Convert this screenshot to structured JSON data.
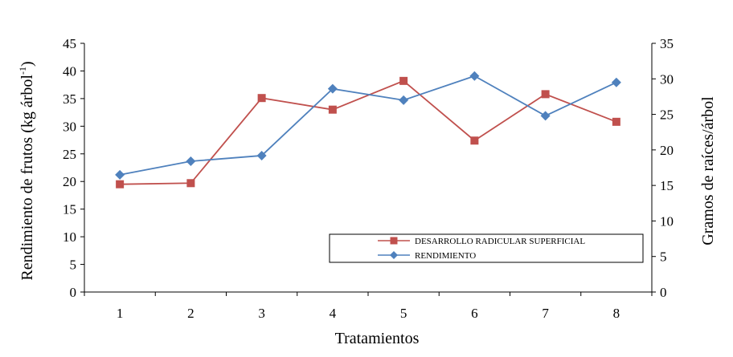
{
  "chart_data": {
    "type": "line",
    "title": "",
    "xlabel": "Tratamientos",
    "ylabel_left": "Rendimiento de  frutos (kg árbol",
    "ylabel_left_sup": "-1",
    "ylabel_left_close": ")",
    "ylabel_right": "Gramos de raíces/árbol",
    "categories": [
      "1",
      "2",
      "3",
      "4",
      "5",
      "6",
      "7",
      "8"
    ],
    "ylim_left": [
      0,
      45
    ],
    "yticks_left": [
      0,
      5,
      10,
      15,
      20,
      25,
      30,
      35,
      40,
      45
    ],
    "ylim_right": [
      0,
      35
    ],
    "yticks_right": [
      0,
      5,
      10,
      15,
      20,
      25,
      30,
      35
    ],
    "grid": false,
    "legend_position": "bottom-right",
    "series": [
      {
        "name": "DESARROLLO RADICULAR SUPERFICIAL",
        "axis": "left",
        "marker": "square",
        "color": "#c0504d",
        "values": [
          19.5,
          19.7,
          35.1,
          33.0,
          38.2,
          27.4,
          35.8,
          30.8
        ]
      },
      {
        "name": "RENDIMIENTO",
        "axis": "right",
        "marker": "diamond",
        "color": "#4f81bd",
        "values": [
          16.5,
          18.4,
          19.2,
          28.6,
          27.0,
          30.4,
          24.8,
          29.5
        ]
      }
    ]
  }
}
